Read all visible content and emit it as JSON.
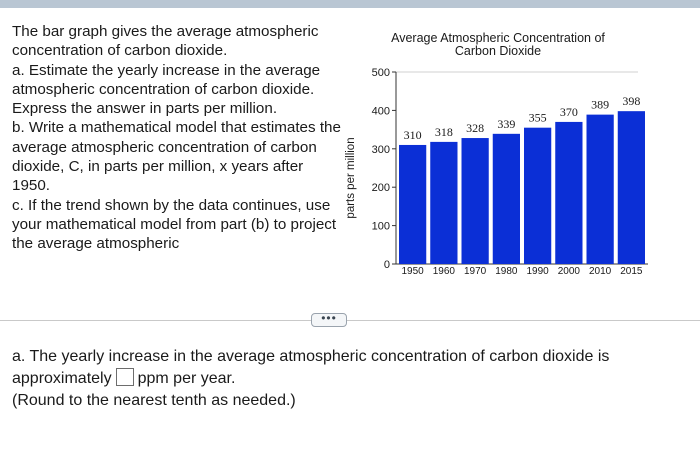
{
  "problem": {
    "intro": "The bar graph gives the average atmospheric concentration of carbon dioxide.",
    "part_a": "a. Estimate the yearly increase in the average atmospheric concentration of carbon dioxide. Express the answer in parts per million.",
    "part_b": "b. Write a mathematical model that estimates the average atmospheric concentration of carbon dioxide, C, in parts per million, x years after 1950.",
    "part_c": "c. If the trend shown by the data continues, use your mathematical model from part (b) to project the average atmospheric"
  },
  "chart_data": {
    "type": "bar",
    "title": "Average Atmospheric Concentration of Carbon Dioxide",
    "ylabel": "parts per million",
    "xlabel": "",
    "ylim": [
      0,
      500
    ],
    "yticks": [
      0,
      100,
      200,
      300,
      400,
      500
    ],
    "categories": [
      "1950",
      "1960",
      "1970",
      "1980",
      "1990",
      "2000",
      "2010",
      "2015"
    ],
    "values": [
      310,
      318,
      328,
      339,
      355,
      370,
      389,
      398
    ],
    "grid": false,
    "bar_color": "#0b2fd6"
  },
  "more_button": {
    "label": "•••"
  },
  "answer": {
    "line1": "a. The yearly increase in the average atmospheric concentration of carbon dioxide is",
    "before_box": "approximately",
    "after_box": "ppm per year.",
    "note": "(Round to the nearest tenth as needed.)"
  }
}
